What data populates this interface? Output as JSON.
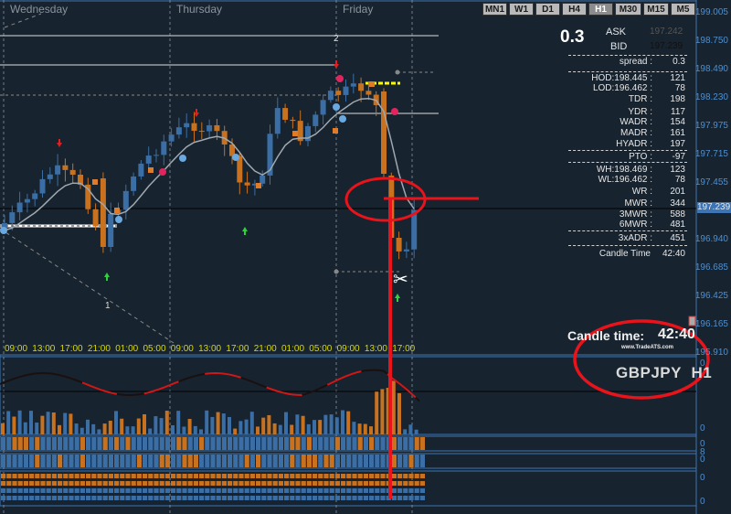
{
  "symbol": "GBPJPY",
  "timeframe": "H1",
  "timeframes": [
    "MN1",
    "W1",
    "D1",
    "H4",
    "H1",
    "M30",
    "M15",
    "M5"
  ],
  "active_timeframe": "H1",
  "days": [
    "Wednesday",
    "Thursday",
    "Friday"
  ],
  "time_labels": [
    "09:00",
    "13:00",
    "17:00",
    "21:00",
    "01:00",
    "05:00",
    "09:00",
    "13:00",
    "17:00",
    "21:00",
    "01:00",
    "05:00",
    "09:00",
    "13:00",
    "17:00"
  ],
  "price_axis": [
    "199.005",
    "198.750",
    "198.490",
    "198.230",
    "197.975",
    "197.715",
    "197.455",
    "197.200",
    "196.940",
    "196.685",
    "196.425",
    "196.165",
    "195.910"
  ],
  "current_price": "197.239",
  "line_labels": {
    "label_1": "1",
    "label_2": "2"
  },
  "info_panel": {
    "spread_big": "0.3",
    "ask_label": "ASK",
    "ask": "197.242",
    "bid_label": "BID",
    "bid": "197.239",
    "rows": [
      {
        "label": "spread :",
        "value": "0.3"
      },
      {
        "label": "HOD:198.445 :",
        "value": "121"
      },
      {
        "label": "LOD:196.462 :",
        "value": "78"
      },
      {
        "label": "TDR :",
        "value": "198"
      },
      {
        "label": "YDR :",
        "value": "117"
      },
      {
        "label": "WADR :",
        "value": "154"
      },
      {
        "label": "MADR :",
        "value": "161"
      },
      {
        "label": "HYADR :",
        "value": "197"
      },
      {
        "label": "PTO :",
        "value": "-97"
      },
      {
        "label": "WH:198.469 :",
        "value": "123"
      },
      {
        "label": "WL:196.462 :",
        "value": "78"
      },
      {
        "label": "WR :",
        "value": "201"
      },
      {
        "label": "MWR :",
        "value": "344"
      },
      {
        "label": "3MWR :",
        "value": "588"
      },
      {
        "label": "6MWR :",
        "value": "481"
      },
      {
        "label": "3xADR :",
        "value": "451"
      },
      {
        "label": "Candle Time",
        "value": "42:40"
      }
    ]
  },
  "candle_time_label": "Candle time:",
  "candle_time": "42:40",
  "watermark": "www.TradeATS.com",
  "subwindow_scale": [
    "0",
    "0",
    "0",
    "8",
    "0",
    "0",
    "0"
  ],
  "colors": {
    "background": "#17232f",
    "bull": "#3a6ea5",
    "bear": "#c8711e",
    "annotation": "#e8131b",
    "axis": "#4f8fcf",
    "time_labels": "#d8d800"
  }
}
